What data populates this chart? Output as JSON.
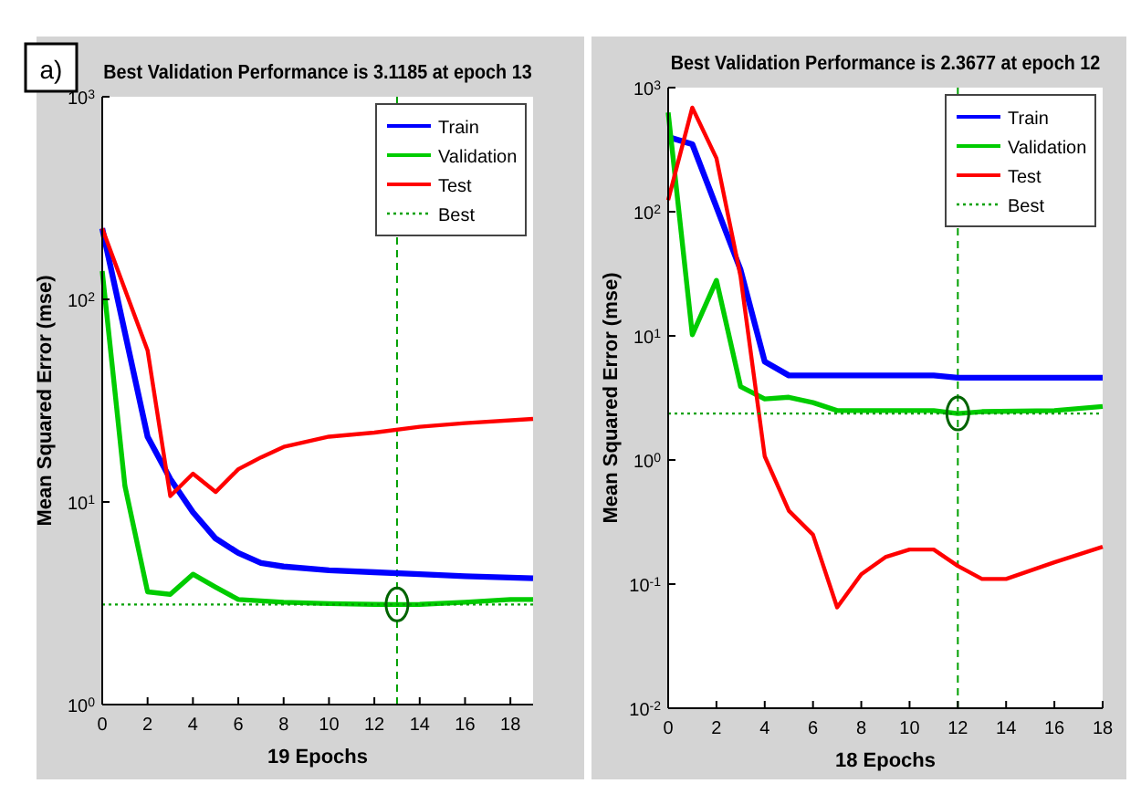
{
  "chart_data": [
    {
      "type": "line",
      "title": "Best Validation Performance is 3.1185 at epoch 13",
      "xlabel": "19 Epochs",
      "ylabel": "Mean Squared Error  (mse)",
      "log": "y",
      "xlim": [
        0,
        19
      ],
      "xticks": [
        0,
        2,
        4,
        6,
        8,
        10,
        12,
        14,
        16,
        18
      ],
      "ylim": [
        1,
        1000
      ],
      "yticks": [
        {
          "value": 1,
          "label": "10$^{0}$"
        },
        {
          "value": 10,
          "label": "10$^{1}$"
        },
        {
          "value": 100,
          "label": "10$^{2}$"
        },
        {
          "value": 1000,
          "label": "10$^{3}$"
        }
      ],
      "grid": false,
      "legend": "top right",
      "annotations": [
        "a)"
      ],
      "series": [
        {
          "name": "Train",
          "color": "#0000ff",
          "x": [
            0,
            2,
            3,
            4,
            5,
            6,
            7,
            8,
            10,
            12,
            14,
            16,
            19
          ],
          "values": [
            224,
            21,
            13,
            8.9,
            6.6,
            5.6,
            5.0,
            4.8,
            4.6,
            4.5,
            4.4,
            4.3,
            4.2
          ]
        },
        {
          "name": "Validation",
          "color": "#00cc00",
          "x": [
            0,
            1,
            2,
            3,
            4,
            5,
            6,
            8,
            10,
            12,
            13,
            14,
            16,
            18,
            19
          ],
          "values": [
            138,
            12,
            3.6,
            3.5,
            4.4,
            3.8,
            3.3,
            3.2,
            3.15,
            3.12,
            3.1185,
            3.12,
            3.2,
            3.3,
            3.3
          ]
        },
        {
          "name": "Test",
          "color": "#ff0000",
          "x": [
            0,
            2,
            3,
            4,
            5,
            6,
            7,
            8,
            10,
            12,
            14,
            16,
            19
          ],
          "values": [
            224,
            56,
            10.7,
            13.8,
            11.2,
            14.5,
            16.6,
            18.7,
            21,
            22,
            23.5,
            24.5,
            25.7
          ]
        },
        {
          "name": "Best",
          "color": "#00a000",
          "line_style": "dotted",
          "x": [
            0,
            19
          ],
          "values": [
            3.1185,
            3.1185
          ]
        },
        {
          "type": "scatter",
          "color": "#006400",
          "marker": "circle",
          "x": [
            13
          ],
          "values": [
            3.1185
          ]
        }
      ],
      "ref_lines": [
        {
          "axis": "x",
          "value": 13,
          "color": "#00a000",
          "line_style": "dashed"
        }
      ]
    },
    {
      "type": "line",
      "title": "Best Validation Performance is 2.3677 at epoch 12",
      "xlabel": "18 Epochs",
      "ylabel": "Mean Squared Error  (mse)",
      "log": "y",
      "xlim": [
        0,
        18
      ],
      "xticks": [
        0,
        2,
        4,
        6,
        8,
        10,
        12,
        14,
        16,
        18
      ],
      "ylim": [
        0.01,
        1000
      ],
      "yticks": [
        {
          "value": 0.01,
          "label": "10$^{-2}$"
        },
        {
          "value": 0.1,
          "label": "10$^{-1}$"
        },
        {
          "value": 1,
          "label": "10$^{0}$"
        },
        {
          "value": 10,
          "label": "10$^{1}$"
        },
        {
          "value": 100,
          "label": "10$^{2}$"
        },
        {
          "value": 1000,
          "label": "10$^{3}$"
        }
      ],
      "grid": false,
      "legend": "top right",
      "series": [
        {
          "name": "Train",
          "color": "#0000ff",
          "x": [
            0,
            1,
            3,
            4,
            5,
            11,
            12,
            18
          ],
          "values": [
            400,
            350,
            34,
            6.2,
            4.8,
            4.8,
            4.6,
            4.6
          ]
        },
        {
          "name": "Validation",
          "color": "#00cc00",
          "x": [
            0,
            1,
            2,
            3,
            4,
            5,
            6,
            7,
            11,
            12,
            13,
            16,
            18
          ],
          "values": [
            630,
            10.2,
            28,
            3.9,
            3.1,
            3.2,
            2.9,
            2.5,
            2.5,
            2.3677,
            2.45,
            2.5,
            2.7
          ]
        },
        {
          "name": "Test",
          "color": "#ff0000",
          "x": [
            0,
            1,
            2,
            3,
            4,
            5,
            6,
            7,
            8,
            9,
            10,
            11,
            12,
            13,
            14,
            16,
            18
          ],
          "values": [
            124,
            690,
            270,
            30,
            1.07,
            0.39,
            0.25,
            0.065,
            0.12,
            0.165,
            0.19,
            0.19,
            0.14,
            0.11,
            0.11,
            0.15,
            0.2
          ]
        },
        {
          "name": "Best",
          "color": "#00a000",
          "line_style": "dotted",
          "x": [
            0,
            18
          ],
          "values": [
            2.3677,
            2.3677
          ]
        },
        {
          "type": "scatter",
          "color": "#006400",
          "marker": "circle",
          "x": [
            12
          ],
          "values": [
            2.3677
          ]
        }
      ],
      "ref_lines": [
        {
          "axis": "x",
          "value": 12,
          "color": "#00a000",
          "line_style": "dashed"
        }
      ]
    }
  ]
}
